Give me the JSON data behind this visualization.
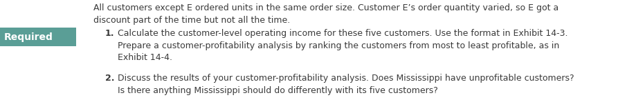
{
  "background_color": "#ffffff",
  "required_box_color": "#5a9e96",
  "required_text": "Required",
  "required_text_color": "#ffffff",
  "intro_text": "All customers except E ordered units in the same order size. Customer E’s order quantity varied, so E got a\ndiscount part of the time but not all the time.",
  "intro_text_color": "#3a3a3a",
  "items": [
    {
      "number": "1.",
      "text": "Calculate the customer-level operating income for these five customers. Use the format in Exhibit 14-3.\nPrepare a customer-profitability analysis by ranking the customers from most to least profitable, as in\nExhibit 14-4.",
      "color": "#3a3a3a"
    },
    {
      "number": "2.",
      "text": "Discuss the results of your customer-profitability analysis. Does Mississippi have unprofitable customers?\nIs there anything Mississippi should do differently with its five customers?",
      "color": "#3a3a3a"
    }
  ],
  "fontsize": 9.0,
  "font_family": "DejaVu Sans"
}
